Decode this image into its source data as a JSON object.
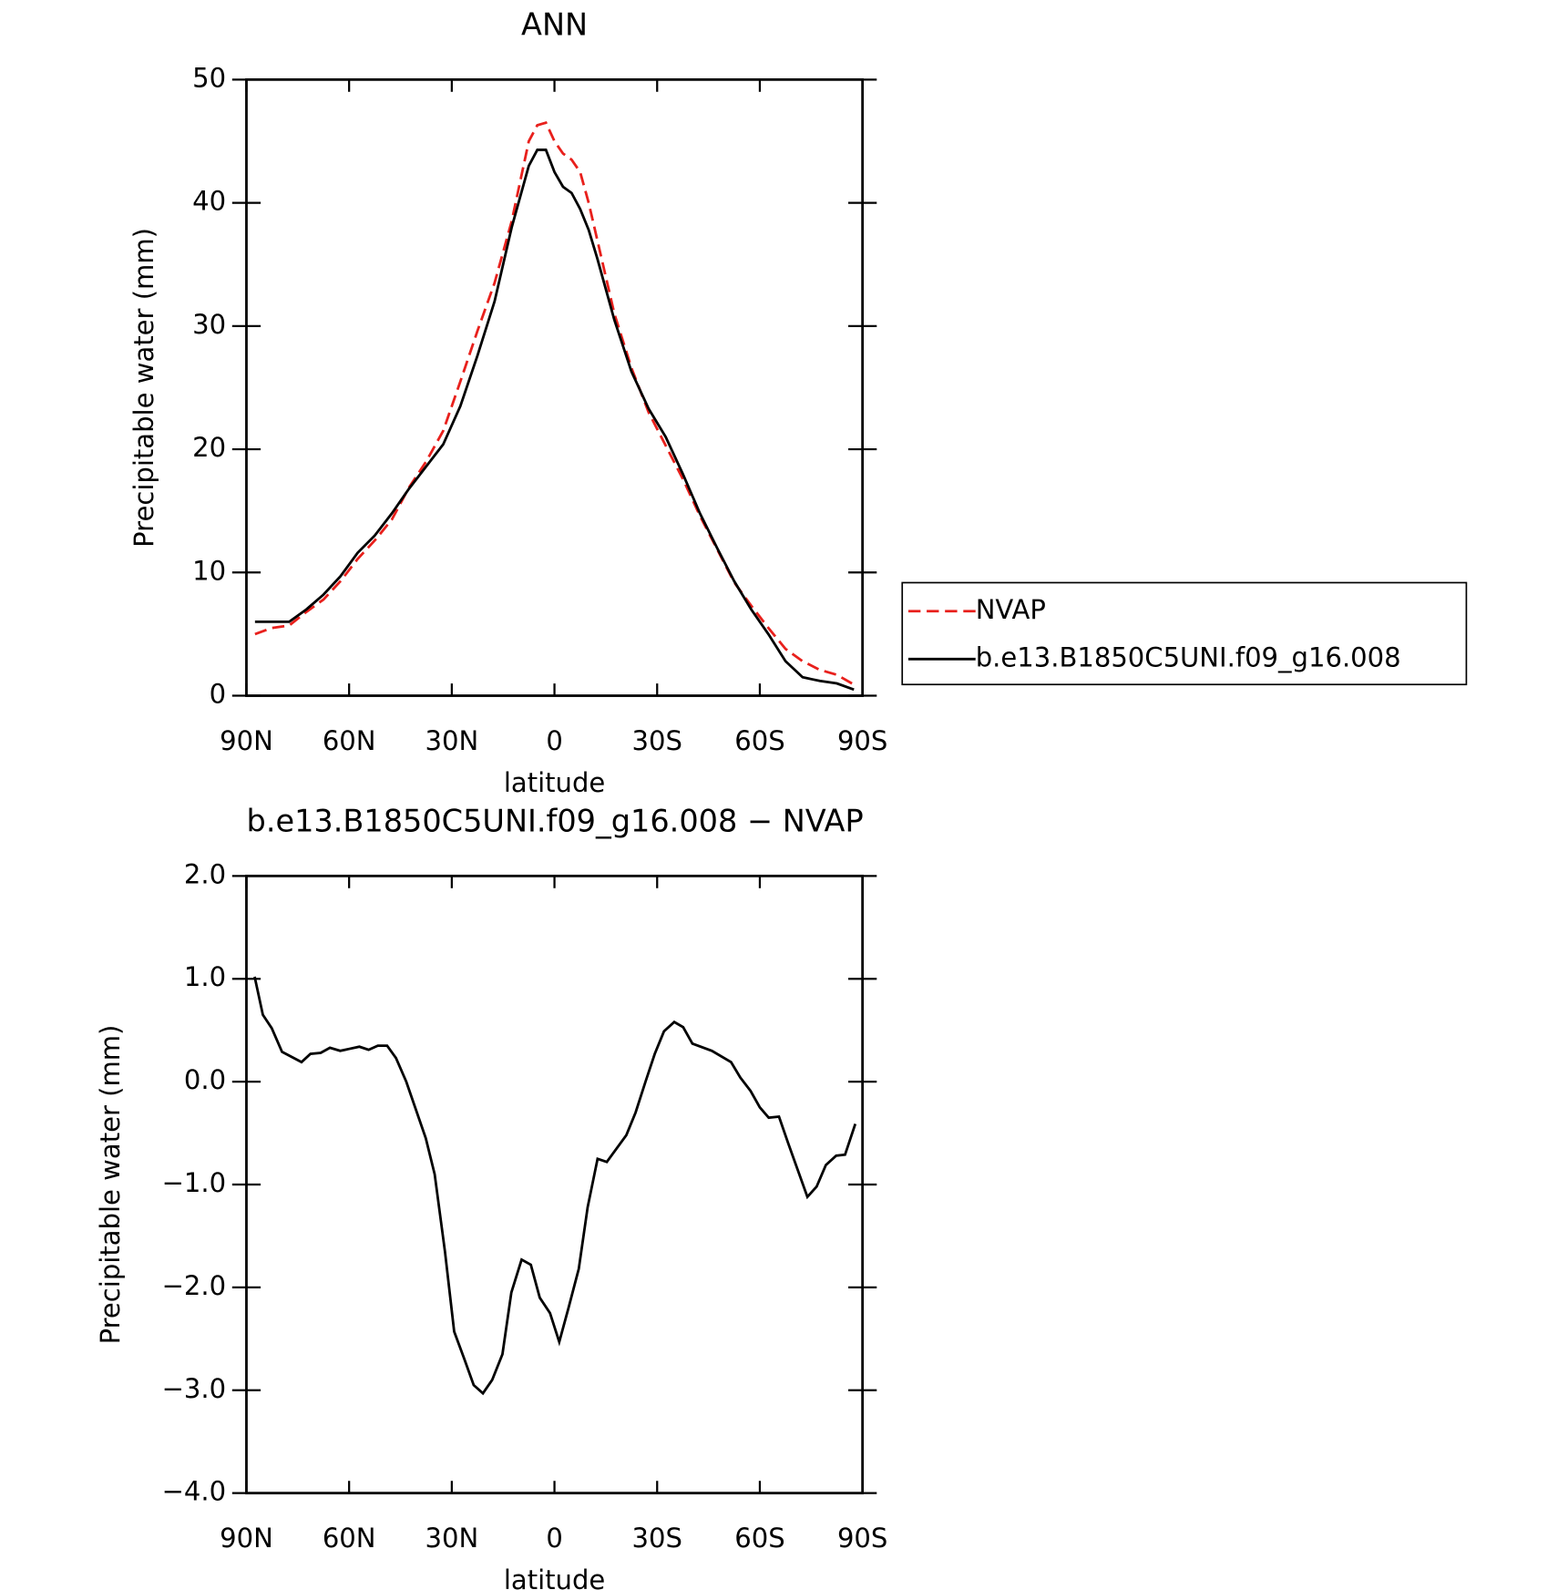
{
  "chart_data": [
    {
      "type": "line",
      "title": "ANN",
      "xlabel": "latitude",
      "ylabel": "Precipitable water (mm)",
      "xlim": [
        90,
        -90
      ],
      "xticks": [
        {
          "value": 90,
          "label": "90N"
        },
        {
          "value": 60,
          "label": "60N"
        },
        {
          "value": 30,
          "label": "30N"
        },
        0,
        {
          "value": -30,
          "label": "30S"
        },
        {
          "value": -60,
          "label": "60S"
        },
        {
          "value": -90,
          "label": "90S"
        }
      ],
      "ylim": [
        0,
        50
      ],
      "yticks": [
        0,
        10,
        20,
        30,
        40,
        50
      ],
      "legend": "outside right",
      "x": [
        87.5,
        82.5,
        77.5,
        72.5,
        67.5,
        62.5,
        57.5,
        52.5,
        47.5,
        42.5,
        37.5,
        32.5,
        27.5,
        22.5,
        17.5,
        12.5,
        7.5,
        5,
        2.5,
        0,
        -2.5,
        -5,
        -7.5,
        -10,
        -12.5,
        -17.5,
        -22.5,
        -27.5,
        -32.5,
        -37.5,
        -42.5,
        -47.5,
        -52.5,
        -57.5,
        -62.5,
        -67.5,
        -72.5,
        -77.5,
        -82.5,
        -87.5
      ],
      "series": [
        {
          "name": "NVAP",
          "color": "#e8201c",
          "dash": true,
          "values": [
            5.0,
            5.5,
            5.7,
            6.8,
            7.8,
            9.3,
            11.1,
            12.6,
            14.3,
            16.9,
            19.0,
            21.5,
            25.5,
            29.6,
            33.5,
            38.5,
            45.0,
            46.3,
            46.5,
            45.0,
            44.0,
            43.5,
            42.5,
            40.0,
            37.0,
            31.0,
            26.6,
            23.0,
            20.3,
            17.6,
            14.6,
            11.9,
            9.2,
            7.3,
            5.5,
            3.8,
            2.8,
            2.1,
            1.7,
            0.9
          ]
        },
        {
          "name": "b.e13.B1850C5UNI.f09_g16.008",
          "color": "#000000",
          "dash": false,
          "values": [
            6.0,
            6.0,
            6.0,
            7.0,
            8.2,
            9.7,
            11.6,
            13.0,
            14.8,
            16.8,
            18.6,
            20.4,
            23.5,
            27.6,
            32.0,
            38.0,
            43.0,
            44.3,
            44.3,
            42.5,
            41.3,
            40.8,
            39.5,
            37.8,
            35.5,
            30.5,
            26.3,
            23.3,
            21.0,
            18.0,
            14.8,
            12.0,
            9.3,
            7.0,
            5.0,
            2.8,
            1.5,
            1.2,
            1.0,
            0.5
          ]
        }
      ]
    },
    {
      "type": "line",
      "title": "b.e13.B1850C5UNI.f09_g16.008 − NVAP",
      "xlabel": "latitude",
      "ylabel": "Precipitable water (mm)",
      "xlim": [
        90,
        -90
      ],
      "xticks": [
        {
          "value": 90,
          "label": "90N"
        },
        {
          "value": 60,
          "label": "60N"
        },
        {
          "value": 30,
          "label": "30N"
        },
        0,
        {
          "value": -30,
          "label": "30S"
        },
        {
          "value": -60,
          "label": "60S"
        },
        {
          "value": -90,
          "label": "90S"
        }
      ],
      "ylim": [
        -4,
        2
      ],
      "yticks": [
        {
          "value": -4,
          "label": "−4.0"
        },
        {
          "value": -3,
          "label": "−3.0"
        },
        {
          "value": -2,
          "label": "−2.0"
        },
        {
          "value": -1,
          "label": "−1.0"
        },
        {
          "value": 0,
          "label": "0.0"
        },
        {
          "value": 1,
          "label": "1.0"
        },
        {
          "value": 2,
          "label": "2.0"
        }
      ],
      "x": [
        87.6,
        85.2,
        82.6,
        79.6,
        73.9,
        71.3,
        68.3,
        65.6,
        62.6,
        57.0,
        54.3,
        51.6,
        48.9,
        46.3,
        43.3,
        37.6,
        35.0,
        32.0,
        29.3,
        26.3,
        23.6,
        20.9,
        18.2,
        15.2,
        12.6,
        9.6,
        6.9,
        4.3,
        1.3,
        -1.4,
        -4.1,
        -7.1,
        -9.7,
        -12.6,
        -15.3,
        -21.0,
        -23.7,
        -26.6,
        -29.3,
        -32.0,
        -35.0,
        -37.6,
        -40.3,
        -46.0,
        -51.6,
        -54.3,
        -57.3,
        -60.0,
        -62.6,
        -65.6,
        -68.3,
        -73.9,
        -76.6,
        -79.3,
        -82.3,
        -84.9,
        -87.9
      ],
      "series": [
        {
          "name": "b.e13.B1850C5UNI.f09_g16.008 − NVAP",
          "color": "#000000",
          "dash": false,
          "values": [
            1.02,
            0.65,
            0.52,
            0.29,
            0.19,
            0.27,
            0.28,
            0.33,
            0.3,
            0.34,
            0.31,
            0.35,
            0.35,
            0.23,
            0.0,
            -0.55,
            -0.9,
            -1.65,
            -2.43,
            -2.7,
            -2.95,
            -3.03,
            -2.9,
            -2.65,
            -2.05,
            -1.73,
            -1.78,
            -2.1,
            -2.25,
            -2.53,
            -2.2,
            -1.82,
            -1.22,
            -0.75,
            -0.78,
            -0.52,
            -0.3,
            0.0,
            0.27,
            0.49,
            0.58,
            0.53,
            0.37,
            0.3,
            0.19,
            0.04,
            -0.09,
            -0.25,
            -0.35,
            -0.34,
            -0.6,
            -1.12,
            -1.02,
            -0.81,
            -0.72,
            -0.71,
            -0.41
          ]
        }
      ]
    }
  ]
}
